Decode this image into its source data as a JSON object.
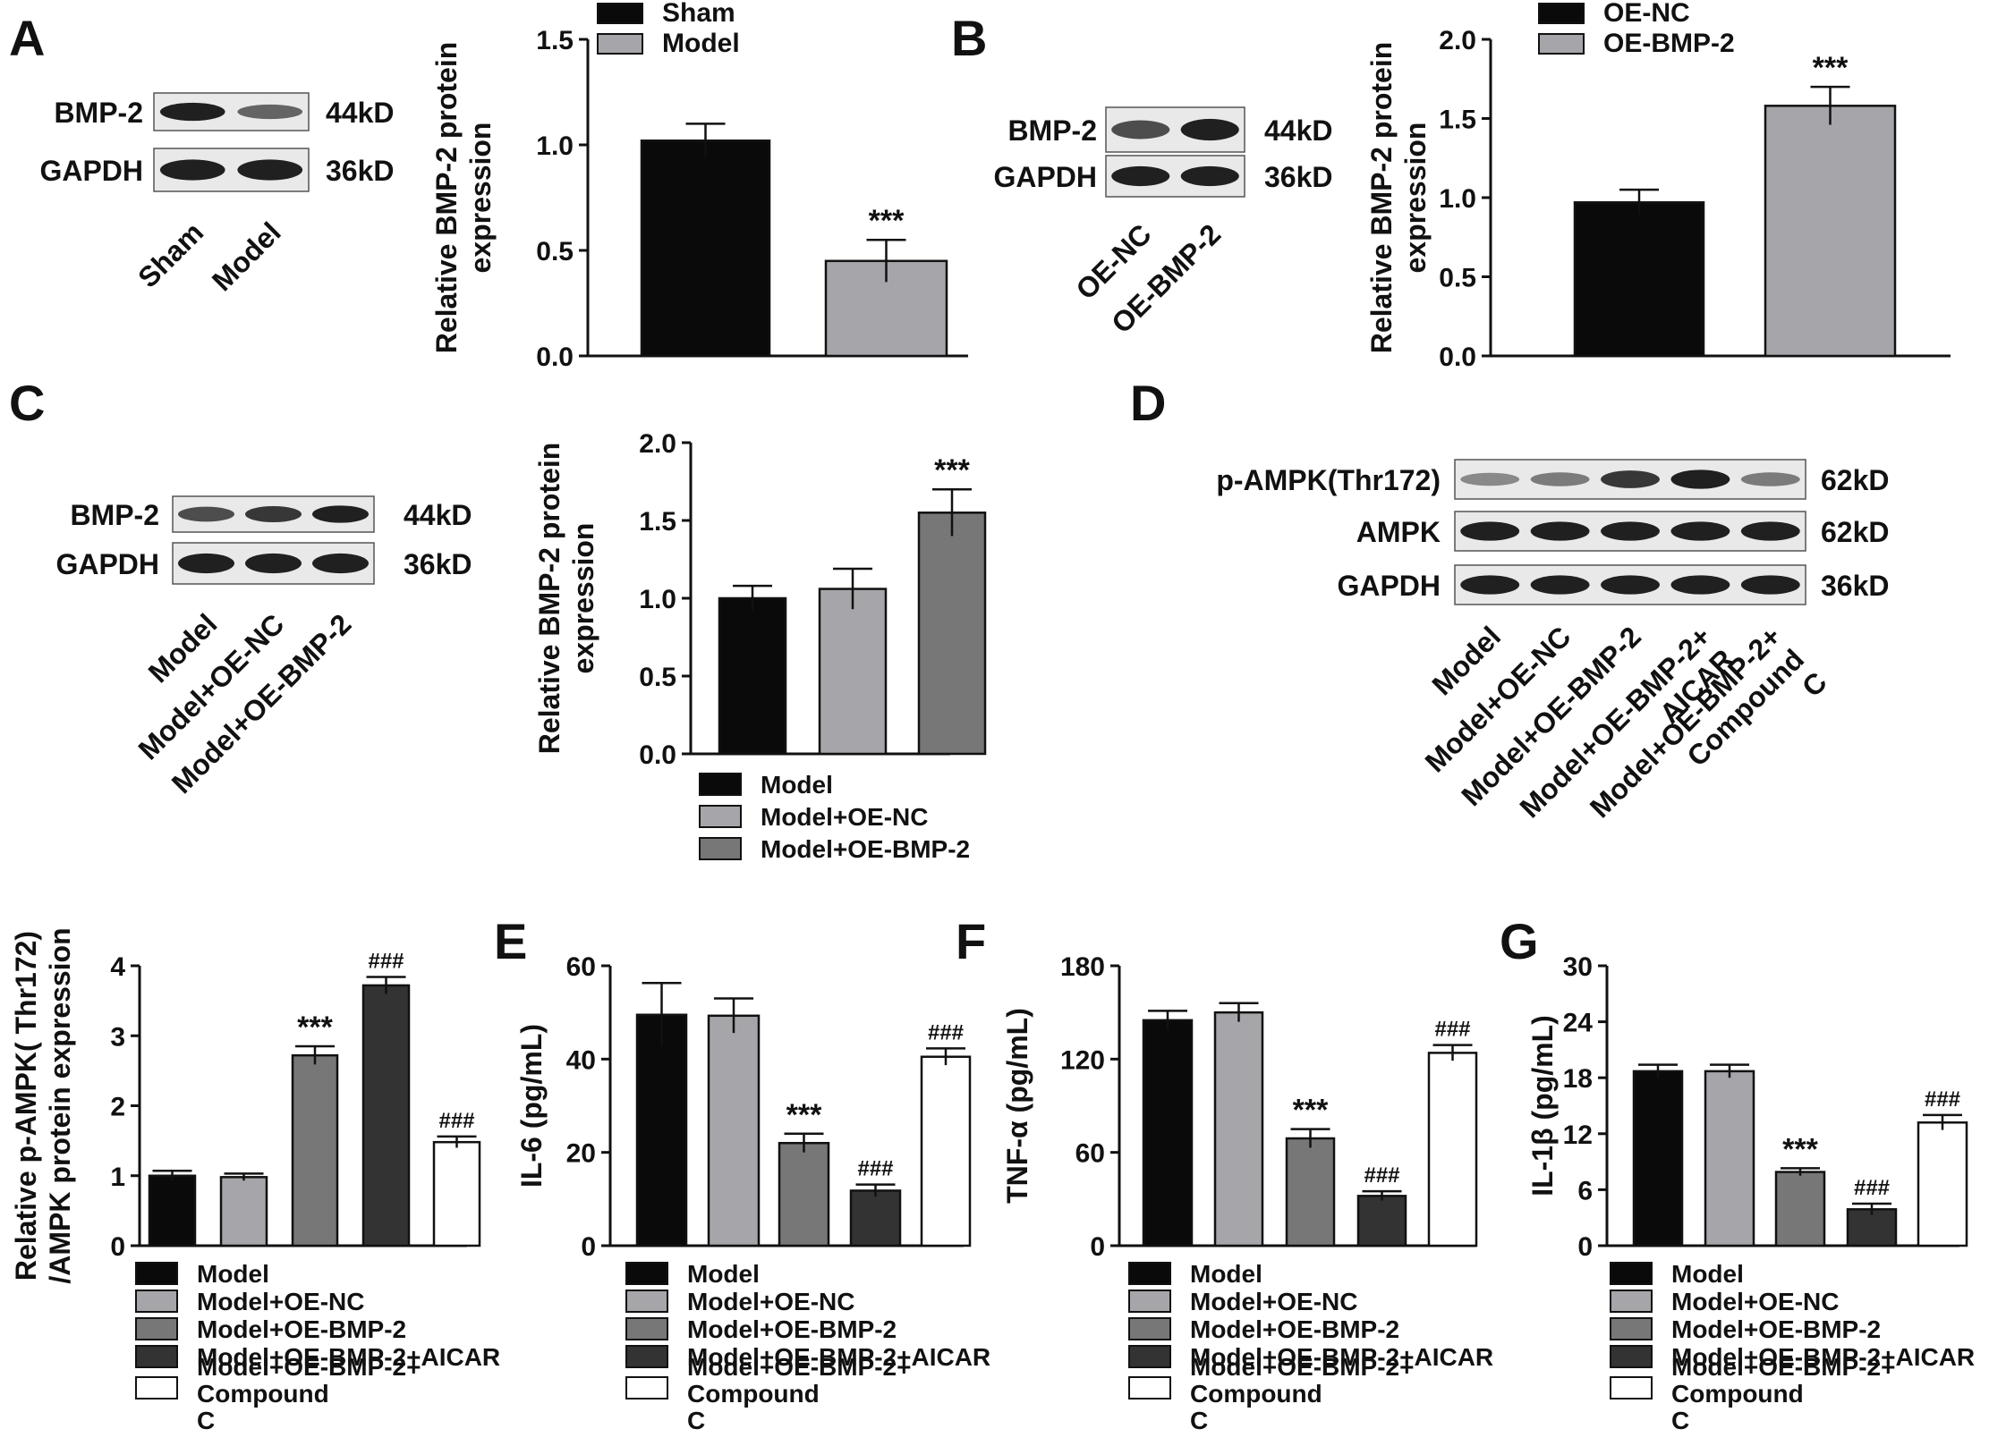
{
  "colors": {
    "c1": "#0a0a0a",
    "c2": "#a6a6aa",
    "c3": "#777777",
    "c4": "#333333",
    "c5": "#ffffff",
    "blot_bg": "#e9e9e9",
    "band": "#202020"
  },
  "panels": {
    "A": {
      "letter": "A",
      "blot": {
        "rows": [
          {
            "name": "BMP-2",
            "kd": "44kD"
          },
          {
            "name": "GAPDH",
            "kd": "36kD"
          }
        ],
        "lanes": [
          "Sham",
          "Model"
        ]
      }
    },
    "B": {
      "letter": "B",
      "blot": {
        "rows": [
          {
            "name": "BMP-2",
            "kd": "44kD"
          },
          {
            "name": "GAPDH",
            "kd": "36kD"
          }
        ],
        "lanes": [
          "OE-NC",
          "OE-BMP-2"
        ]
      }
    },
    "C": {
      "letter": "C",
      "blot": {
        "rows": [
          {
            "name": "BMP-2",
            "kd": "44kD"
          },
          {
            "name": "GAPDH",
            "kd": "36kD"
          }
        ],
        "lanes": [
          "Model",
          "Model+OE-NC",
          "Model+OE-BMP-2"
        ]
      }
    },
    "D": {
      "letter": "D",
      "blot": {
        "rows": [
          {
            "name": "p-AMPK(Thr172)",
            "kd": "62kD"
          },
          {
            "name": "AMPK",
            "kd": "62kD"
          },
          {
            "name": "GAPDH",
            "kd": "36kD"
          }
        ],
        "lanes": [
          "Model",
          "Model+OE-NC",
          "Model+OE-BMP-2",
          "Model+OE-BMP-2+ AICAR",
          "Model+OE-BMP-2+ Compound C"
        ]
      }
    },
    "E": {
      "letter": "E"
    },
    "F": {
      "letter": "F"
    },
    "G": {
      "letter": "G"
    }
  },
  "chart_data": [
    {
      "id": "A",
      "type": "bar",
      "categories": [
        "Sham",
        "Model"
      ],
      "values": [
        1.02,
        0.45
      ],
      "errors": [
        0.08,
        0.1
      ],
      "annotations": [
        "",
        "***"
      ],
      "ylabel": "Relative BMP-2 protein expression",
      "ylim": [
        0,
        1.5
      ],
      "yticks": [
        "0.0",
        "0.5",
        "1.0",
        "1.5"
      ],
      "legend": [
        "Sham",
        "Model"
      ],
      "legend_position": "top-right"
    },
    {
      "id": "B",
      "type": "bar",
      "categories": [
        "OE-NC",
        "OE-BMP-2"
      ],
      "values": [
        0.97,
        1.58
      ],
      "errors": [
        0.08,
        0.12
      ],
      "annotations": [
        "",
        "***"
      ],
      "ylabel": "Relative BMP-2 protein expression",
      "ylim": [
        0,
        2.0
      ],
      "yticks": [
        "0.0",
        "0.5",
        "1.0",
        "1.5",
        "2.0"
      ],
      "legend": [
        "OE-NC",
        "OE-BMP-2"
      ],
      "legend_position": "top-right"
    },
    {
      "id": "C",
      "type": "bar",
      "categories": [
        "Model",
        "Model+OE-NC",
        "Model+OE-BMP-2"
      ],
      "values": [
        1.0,
        1.06,
        1.55
      ],
      "errors": [
        0.08,
        0.13,
        0.15
      ],
      "annotations": [
        "",
        "",
        "***"
      ],
      "ylabel": "Relative BMP-2 protein expression",
      "ylim": [
        0,
        2.0
      ],
      "yticks": [
        "0.0",
        "0.5",
        "1.0",
        "1.5",
        "2.0"
      ],
      "legend": [
        "Model",
        "Model+OE-NC",
        "Model+OE-BMP-2"
      ],
      "legend_position": "bottom"
    },
    {
      "id": "D",
      "type": "bar",
      "categories": [
        "Model",
        "Model+OE-NC",
        "Model+OE-BMP-2",
        "Model+OE-BMP-2+AICAR",
        "Model+OE-BMP-2+ Compound C"
      ],
      "values": [
        1.0,
        0.98,
        2.72,
        3.72,
        1.48
      ],
      "errors": [
        0.07,
        0.05,
        0.13,
        0.12,
        0.08
      ],
      "annotations": [
        "",
        "",
        "***",
        "###",
        "###"
      ],
      "ylabel": "Relative p-AMPK( Thr172) /AMPK protein expression",
      "ylim": [
        0,
        4
      ],
      "yticks": [
        "0",
        "1",
        "2",
        "3",
        "4"
      ],
      "legend": [
        "Model",
        "Model+OE-NC",
        "Model+OE-BMP-2",
        "Model+OE-BMP-2+AICAR",
        "Model+OE-BMP-2+ Compound C"
      ],
      "legend_position": "bottom"
    },
    {
      "id": "E",
      "type": "bar",
      "categories": [
        "Model",
        "Model+OE-NC",
        "Model+OE-BMP-2",
        "Model+OE-BMP-2+AICAR",
        "Model+OE-BMP-2+ Compound C"
      ],
      "values": [
        49.5,
        49.3,
        22.0,
        11.8,
        40.5
      ],
      "errors": [
        6.8,
        3.7,
        2.0,
        1.3,
        1.8
      ],
      "annotations": [
        "",
        "",
        "***",
        "###",
        "###"
      ],
      "ylabel": "IL-6 (pg/mL)",
      "ylim": [
        0,
        60
      ],
      "yticks": [
        "0",
        "20",
        "40",
        "60"
      ],
      "legend": [
        "Model",
        "Model+OE-NC",
        "Model+OE-BMP-2",
        "Model+OE-BMP-2+AICAR",
        "Model+OE-BMP-2+ Compound C"
      ],
      "legend_position": "bottom"
    },
    {
      "id": "F",
      "type": "bar",
      "categories": [
        "Model",
        "Model+OE-NC",
        "Model+OE-BMP-2",
        "Model+OE-BMP-2+AICAR",
        "Model+OE-BMP-2+ Compound C"
      ],
      "values": [
        145,
        150,
        69,
        32,
        124
      ],
      "errors": [
        6,
        6,
        6,
        3,
        5
      ],
      "annotations": [
        "",
        "",
        "***",
        "###",
        "###"
      ],
      "ylabel": "TNF-α (pg/mL)",
      "ylim": [
        0,
        180
      ],
      "yticks": [
        "0",
        "60",
        "120",
        "180"
      ],
      "legend": [
        "Model",
        "Model+OE-NC",
        "Model+OE-BMP-2",
        "Model+OE-BMP-2+AICAR",
        "Model+OE-BMP-2+ Compound C"
      ],
      "legend_position": "bottom"
    },
    {
      "id": "G",
      "type": "bar",
      "categories": [
        "Model",
        "Model+OE-NC",
        "Model+OE-BMP-2",
        "Model+OE-BMP-2+AICAR",
        "Model+OE-BMP-2+ Compound C"
      ],
      "values": [
        18.7,
        18.7,
        7.9,
        3.9,
        13.2
      ],
      "errors": [
        0.7,
        0.7,
        0.4,
        0.6,
        0.8
      ],
      "annotations": [
        "",
        "",
        "***",
        "###",
        "###"
      ],
      "ylabel": "IL-1β (pg/mL)",
      "ylim": [
        0,
        30
      ],
      "yticks": [
        "0",
        "6",
        "12",
        "18",
        "24",
        "30"
      ],
      "legend": [
        "Model",
        "Model+OE-NC",
        "Model+OE-BMP-2",
        "Model+OE-BMP-2+AICAR",
        "Model+OE-BMP-2+ Compound C"
      ],
      "legend_position": "bottom"
    }
  ]
}
